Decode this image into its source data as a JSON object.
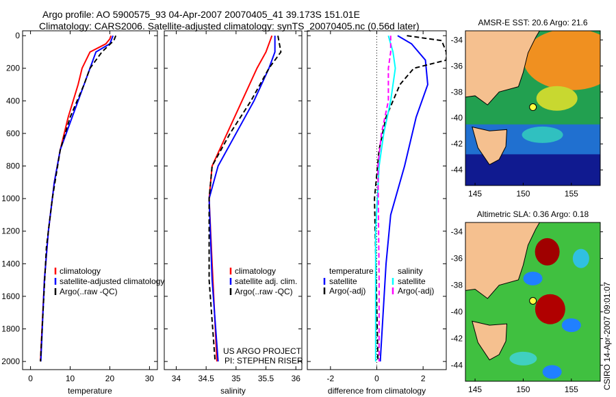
{
  "title_line1": "Argo profile: AO 5900575_93 04-Apr-2007 20070405_41 39.173S 151.01E",
  "title_line2": "Climatology: CARS2006. Satellite-adjusted climatology: synTS_20070405.nc (0.56d later)",
  "side_label": "CSIRO 14-Apr-2007 09:01:07",
  "credit": [
    "US ARGO PROJECT",
    "PI: STEPHEN RISER"
  ],
  "colors": {
    "red": "#ff0000",
    "blue": "#0000ff",
    "black": "#000000",
    "cyan": "#00ffff",
    "magenta": "#ff00ff"
  },
  "chart_data": [
    {
      "type": "line",
      "xlabel": "temperature",
      "ylabel": "depth",
      "xlim": [
        -2,
        32
      ],
      "ylim": [
        2050,
        -30
      ],
      "xticks": [
        0,
        10,
        20,
        30
      ],
      "yticks": [
        0,
        200,
        400,
        600,
        800,
        1000,
        1200,
        1400,
        1600,
        1800,
        2000
      ],
      "legend": [
        "climatology",
        "satellite-adjusted climatology",
        "Argo(..raw -QC)"
      ],
      "series": [
        {
          "name": "climatology",
          "color": "#ff0000",
          "dash": false,
          "points": [
            [
              20.3,
              0
            ],
            [
              20,
              20
            ],
            [
              19,
              50
            ],
            [
              15,
              100
            ],
            [
              13,
              200
            ],
            [
              12,
              300
            ],
            [
              9.5,
              500
            ],
            [
              7.5,
              700
            ],
            [
              6,
              900
            ],
            [
              4.5,
              1200
            ],
            [
              3.5,
              1500
            ],
            [
              2.5,
              2000
            ]
          ]
        },
        {
          "name": "satellite-adjusted climatology",
          "color": "#0000ff",
          "dash": false,
          "points": [
            [
              20.8,
              0
            ],
            [
              20,
              50
            ],
            [
              16.5,
              100
            ],
            [
              15,
              200
            ],
            [
              13.5,
              300
            ],
            [
              10.5,
              500
            ],
            [
              7.5,
              700
            ],
            [
              6,
              900
            ],
            [
              4.5,
              1200
            ],
            [
              3.5,
              1500
            ],
            [
              2.6,
              2000
            ]
          ]
        },
        {
          "name": "Argo(..raw -QC)",
          "color": "#000000",
          "dash": true,
          "points": [
            [
              21.5,
              0
            ],
            [
              21,
              30
            ],
            [
              18,
              100
            ],
            [
              15,
              200
            ],
            [
              13.5,
              300
            ],
            [
              10,
              500
            ],
            [
              7.5,
              700
            ],
            [
              5.5,
              1000
            ],
            [
              4,
              1300
            ],
            [
              2.5,
              2000
            ]
          ]
        }
      ]
    },
    {
      "type": "line",
      "xlabel": "salinity",
      "ylabel": "depth",
      "xlim": [
        33.8,
        36.1
      ],
      "ylim": [
        2050,
        -30
      ],
      "xticks": [
        34,
        34.5,
        35,
        35.5,
        36
      ],
      "legend": [
        "climatology",
        "satellite adj. clim.",
        "Argo(..raw -QC)"
      ],
      "series": [
        {
          "name": "climatology",
          "color": "#ff0000",
          "dash": false,
          "points": [
            [
              35.6,
              0
            ],
            [
              35.5,
              100
            ],
            [
              35.35,
              200
            ],
            [
              35.1,
              400
            ],
            [
              34.85,
              600
            ],
            [
              34.6,
              800
            ],
            [
              34.55,
              1000
            ],
            [
              34.6,
              1400
            ],
            [
              34.68,
              2000
            ]
          ]
        },
        {
          "name": "satellite adj. clim.",
          "color": "#0000ff",
          "dash": false,
          "points": [
            [
              35.65,
              0
            ],
            [
              35.65,
              100
            ],
            [
              35.55,
              200
            ],
            [
              35.3,
              400
            ],
            [
              35,
              600
            ],
            [
              34.7,
              800
            ],
            [
              34.55,
              1000
            ],
            [
              34.6,
              1500
            ],
            [
              34.7,
              2000
            ]
          ]
        },
        {
          "name": "Argo(..raw -QC)",
          "color": "#000000",
          "dash": true,
          "points": [
            [
              35.7,
              0
            ],
            [
              35.75,
              100
            ],
            [
              35.55,
              200
            ],
            [
              35.25,
              400
            ],
            [
              34.9,
              600
            ],
            [
              34.6,
              800
            ],
            [
              34.55,
              1000
            ],
            [
              34.55,
              1500
            ],
            [
              34.65,
              2000
            ]
          ]
        }
      ]
    },
    {
      "type": "line",
      "xlabel": "difference from climatology",
      "ylabel": "depth",
      "xlim": [
        -3,
        3
      ],
      "ylim": [
        2050,
        -30
      ],
      "xticks": [
        -2,
        0,
        2
      ],
      "legend_headers": [
        "temperature",
        "salinity"
      ],
      "legend": [
        "satellite",
        "Argo(-adj)",
        "satellite",
        "Argo(-adj)"
      ],
      "series": [
        {
          "name": "temperature satellite",
          "color": "#0000ff",
          "dash": false,
          "points": [
            [
              0.9,
              0
            ],
            [
              1.5,
              50
            ],
            [
              2.1,
              150
            ],
            [
              2.2,
              300
            ],
            [
              1.7,
              500
            ],
            [
              1.2,
              800
            ],
            [
              0.6,
              1100
            ],
            [
              0.4,
              1400
            ],
            [
              0.15,
              2000
            ]
          ]
        },
        {
          "name": "temperature Argo(-adj)",
          "color": "#000000",
          "dash": true,
          "points": [
            [
              1.3,
              0
            ],
            [
              2.8,
              30
            ],
            [
              3,
              100
            ],
            [
              3,
              150
            ],
            [
              1.6,
              200
            ],
            [
              1,
              300
            ],
            [
              0.4,
              500
            ],
            [
              0.1,
              700
            ],
            [
              -0.1,
              1000
            ],
            [
              0.05,
              2000
            ]
          ]
        },
        {
          "name": "salinity satellite",
          "color": "#00ffff",
          "dash": false,
          "points": [
            [
              0.5,
              0
            ],
            [
              0.7,
              100
            ],
            [
              0.8,
              200
            ],
            [
              0.6,
              400
            ],
            [
              0.3,
              600
            ],
            [
              0.1,
              800
            ],
            [
              -0.05,
              1200
            ],
            [
              -0.05,
              2000
            ]
          ]
        },
        {
          "name": "salinity Argo(-adj)",
          "color": "#ff00ff",
          "dash": true,
          "points": [
            [
              0.6,
              0
            ],
            [
              0.6,
              100
            ],
            [
              0.5,
              200
            ],
            [
              0.5,
              400
            ],
            [
              0.2,
              600
            ],
            [
              0.05,
              800
            ],
            [
              0.1,
              1500
            ],
            [
              0.1,
              2000
            ]
          ]
        }
      ]
    },
    {
      "type": "heatmap",
      "title": "AMSR-E SST: 20.6 Argo: 21.6",
      "xticks": [
        145,
        150,
        155
      ],
      "yticks": [
        -34,
        -36,
        -38,
        -40,
        -42,
        -44
      ],
      "marker": [
        151.01,
        -39.173
      ]
    },
    {
      "type": "heatmap",
      "title": "Altimetric SLA: 0.36 Argo: 0.18",
      "xticks": [
        145,
        150,
        155
      ],
      "yticks": [
        -34,
        -36,
        -38,
        -40,
        -42,
        -44
      ],
      "marker": [
        151.01,
        -39.173
      ]
    }
  ]
}
